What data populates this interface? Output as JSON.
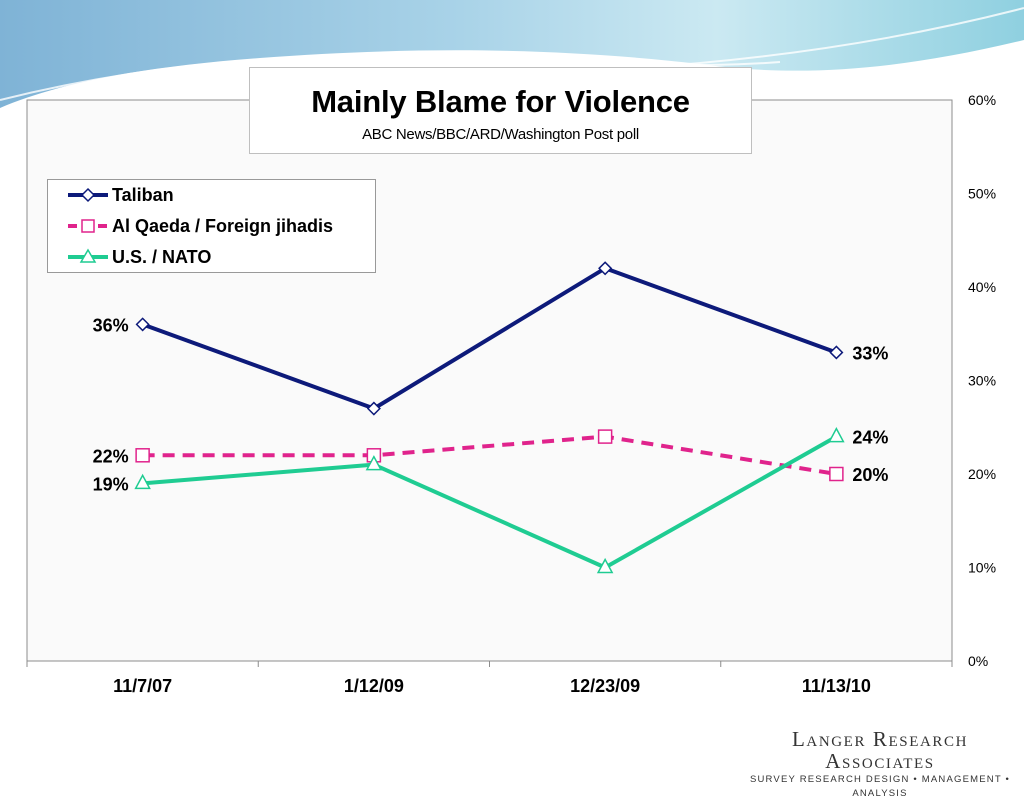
{
  "chart_data": {
    "type": "line",
    "title": "Mainly Blame for Violence",
    "subtitle": "ABC News/BBC/ARD/Washington Post poll",
    "categories": [
      "11/7/07",
      "1/12/09",
      "12/23/09",
      "11/13/10"
    ],
    "ylim": [
      0,
      60
    ],
    "y_ticks": [
      0,
      10,
      20,
      30,
      40,
      50,
      60
    ],
    "y_tick_labels": [
      "0%",
      "10%",
      "20%",
      "30%",
      "40%",
      "50%",
      "60%"
    ],
    "y_axis_side": "right",
    "grid": false,
    "legend_position": "top-left",
    "series": [
      {
        "name": "Taliban",
        "values": [
          36,
          27,
          42,
          33
        ],
        "color": "#0d1a7a",
        "marker": "diamond",
        "dash": "solid"
      },
      {
        "name": "Al Qaeda / Foreign jihadis",
        "values": [
          22,
          22,
          24,
          20
        ],
        "color": "#e0238c",
        "marker": "square",
        "dash": "dashed"
      },
      {
        "name": "U.S. / NATO",
        "values": [
          19,
          21,
          10,
          24
        ],
        "color": "#1fcc92",
        "marker": "triangle",
        "dash": "solid"
      }
    ],
    "data_labels": [
      {
        "series": 0,
        "index": 0,
        "text": "36%"
      },
      {
        "series": 0,
        "index": 3,
        "text": "33%"
      },
      {
        "series": 1,
        "index": 0,
        "text": "22%"
      },
      {
        "series": 1,
        "index": 3,
        "text": "20%"
      },
      {
        "series": 2,
        "index": 0,
        "text": "19%"
      },
      {
        "series": 2,
        "index": 3,
        "text": "24%"
      }
    ]
  },
  "branding": {
    "name": "Langer Research Associates",
    "tagline": "Survey Research Design • Management • Analysis"
  }
}
